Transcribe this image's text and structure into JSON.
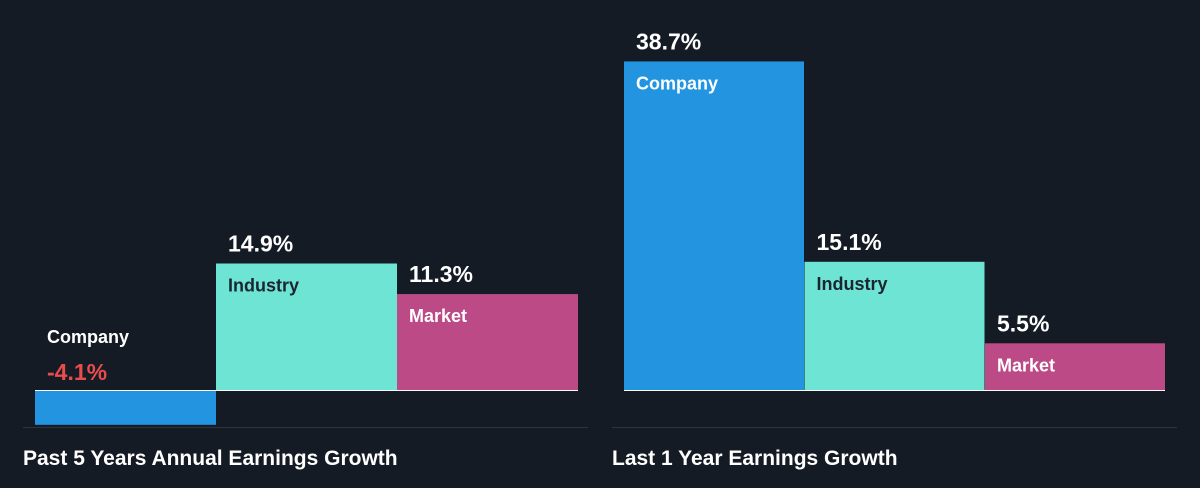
{
  "colors": {
    "background": "#151b24",
    "company": "#2394e0",
    "industry": "#6de4d4",
    "market": "#bb4a87",
    "negative_value": "#e84c4c",
    "text": "#ffffff",
    "dark_text": "#1b2430",
    "divider": "#2c3440"
  },
  "chart_data": [
    {
      "type": "bar",
      "title": "Past 5 Years Annual Earnings Growth",
      "categories": [
        "Company",
        "Industry",
        "Market"
      ],
      "values": [
        -4.1,
        14.9,
        11.3
      ],
      "value_labels": [
        "-4.1%",
        "14.9%",
        "11.3%"
      ],
      "unit": "%",
      "grid": false,
      "legend": "none"
    },
    {
      "type": "bar",
      "title": "Last 1 Year Earnings Growth",
      "categories": [
        "Company",
        "Industry",
        "Market"
      ],
      "values": [
        38.7,
        15.1,
        5.5
      ],
      "value_labels": [
        "38.7%",
        "15.1%",
        "5.5%"
      ],
      "unit": "%",
      "grid": false,
      "legend": "none"
    }
  ]
}
